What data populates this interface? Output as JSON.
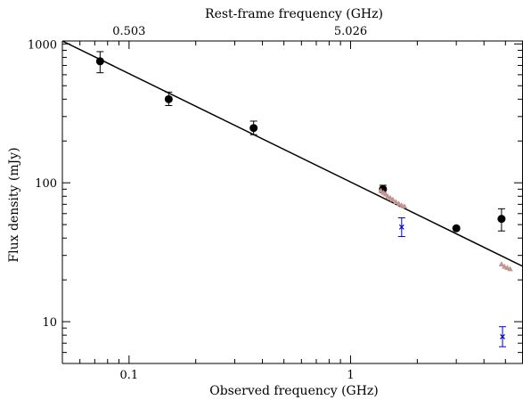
{
  "chart_data": {
    "type": "scatter",
    "title": "",
    "top_axis_label": "Rest-frame frequency (GHz)",
    "top_tick_labels": [
      "0.503",
      "5.026"
    ],
    "xlabel": "Observed frequency (GHz)",
    "ylabel": "Flux density (mJy)",
    "xscale": "log",
    "yscale": "log",
    "xlim": [
      0.05,
      6.0
    ],
    "ylim": [
      5,
      1050
    ],
    "x_tick_labels": [
      "0.1",
      "1"
    ],
    "y_tick_labels": [
      "10",
      "100",
      "1000"
    ],
    "grid": false,
    "series": [
      {
        "marker": "circle",
        "color": "#000000",
        "points": [
          {
            "x": 0.074,
            "y": 750,
            "ylo": 620,
            "yhi": 880
          },
          {
            "x": 0.151,
            "y": 400,
            "ylo": 360,
            "yhi": 450
          },
          {
            "x": 0.365,
            "y": 248,
            "ylo": 222,
            "yhi": 278
          },
          {
            "x": 1.4,
            "y": 90,
            "ylo": 85,
            "yhi": 96
          },
          {
            "x": 3.0,
            "y": 47,
            "ylo": 46,
            "yhi": 48
          },
          {
            "x": 4.8,
            "y": 55,
            "ylo": 45,
            "yhi": 65
          }
        ]
      },
      {
        "marker": "triangle",
        "color": "#c4948f",
        "points": [
          {
            "x": 1.37,
            "y": 88
          },
          {
            "x": 1.41,
            "y": 85
          },
          {
            "x": 1.44,
            "y": 83
          },
          {
            "x": 1.47,
            "y": 80
          },
          {
            "x": 1.51,
            "y": 78
          },
          {
            "x": 1.55,
            "y": 76
          },
          {
            "x": 1.6,
            "y": 73
          },
          {
            "x": 1.65,
            "y": 71
          },
          {
            "x": 1.7,
            "y": 69
          },
          {
            "x": 1.75,
            "y": 68
          },
          {
            "x": 4.8,
            "y": 26
          },
          {
            "x": 4.95,
            "y": 25
          },
          {
            "x": 5.1,
            "y": 24.5
          },
          {
            "x": 5.25,
            "y": 24
          }
        ]
      },
      {
        "marker": "x",
        "color": "#0000cc",
        "points": [
          {
            "x": 1.7,
            "y": 48,
            "ylo": 41,
            "yhi": 56
          },
          {
            "x": 4.85,
            "y": 7.8,
            "ylo": 6.6,
            "yhi": 9.2
          }
        ]
      }
    ],
    "fit_line": {
      "x": [
        0.05,
        6.0
      ],
      "y": [
        1050,
        25
      ]
    }
  }
}
